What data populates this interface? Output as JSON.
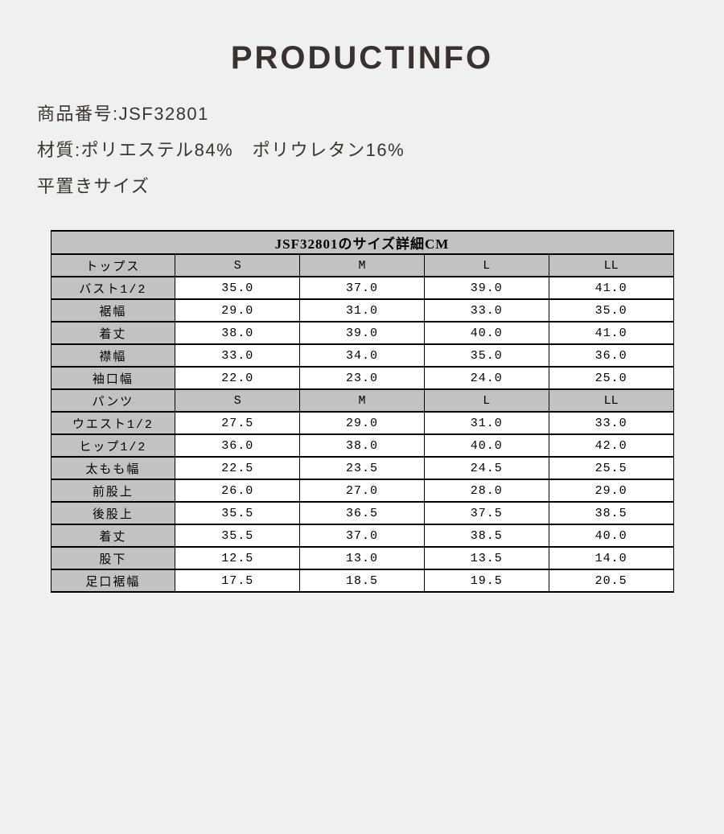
{
  "page": {
    "title": "PRODUCTINFO",
    "info_lines": [
      "商品番号:JSF32801",
      "材質:ポリエステル84%　ポリウレタン16%",
      "平置きサイズ"
    ]
  },
  "table": {
    "title": "JSF32801のサイズ詳細CM",
    "unit": "CM",
    "sections": [
      {
        "header": {
          "label": "トップス",
          "sizes": [
            "S",
            "M",
            "L",
            "LL"
          ]
        },
        "rows": [
          {
            "label": "バスト1/2",
            "values": [
              "35.0",
              "37.0",
              "39.0",
              "41.0"
            ]
          },
          {
            "label": "裾幅",
            "values": [
              "29.0",
              "31.0",
              "33.0",
              "35.0"
            ]
          },
          {
            "label": "着丈",
            "values": [
              "38.0",
              "39.0",
              "40.0",
              "41.0"
            ]
          },
          {
            "label": "襟幅",
            "values": [
              "33.0",
              "34.0",
              "35.0",
              "36.0"
            ]
          },
          {
            "label": "袖口幅",
            "values": [
              "22.0",
              "23.0",
              "24.0",
              "25.0"
            ]
          }
        ]
      },
      {
        "header": {
          "label": "パンツ",
          "sizes": [
            "S",
            "M",
            "L",
            "LL"
          ]
        },
        "rows": [
          {
            "label": "ウエスト1/2",
            "values": [
              "27.5",
              "29.0",
              "31.0",
              "33.0"
            ]
          },
          {
            "label": "ヒップ1/2",
            "values": [
              "36.0",
              "38.0",
              "40.0",
              "42.0"
            ]
          },
          {
            "label": "太もも幅",
            "values": [
              "22.5",
              "23.5",
              "24.5",
              "25.5"
            ]
          },
          {
            "label": "前股上",
            "values": [
              "26.0",
              "27.0",
              "28.0",
              "29.0"
            ]
          },
          {
            "label": "後股上",
            "values": [
              "35.5",
              "36.5",
              "37.5",
              "38.5"
            ]
          },
          {
            "label": "着丈",
            "values": [
              "35.5",
              "37.0",
              "38.5",
              "40.0"
            ]
          },
          {
            "label": "股下",
            "values": [
              "12.5",
              "13.0",
              "13.5",
              "14.0"
            ]
          },
          {
            "label": "足口裾幅",
            "values": [
              "17.5",
              "18.5",
              "19.5",
              "20.5"
            ]
          }
        ]
      }
    ]
  },
  "colors": {
    "page_background": "#f0f0ee",
    "table_header_gray": "#c2c2c2",
    "table_border": "#000000",
    "cell_white": "#ffffff",
    "heading_text": "#393230"
  }
}
